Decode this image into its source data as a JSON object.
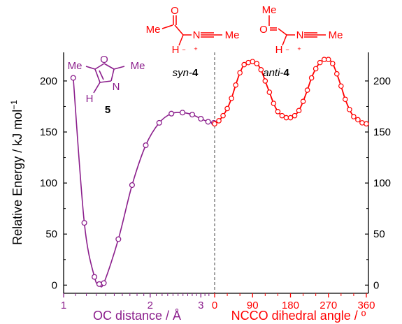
{
  "chart_data": {
    "type": "line",
    "ylabel": "Relative Energy / kJ mol",
    "ylabel_superscript": "−1",
    "ylim": [
      -8,
      228
    ],
    "yticks": [
      "0",
      "50",
      "100",
      "150",
      "200"
    ],
    "left_panel": {
      "xlabel": "OC distance / Å",
      "xlim": [
        1.0,
        3.35
      ],
      "xticks": [
        "1",
        "2",
        "3"
      ],
      "color": "#8B1E8C",
      "molecule_label": "5",
      "structure_text": {
        "me1": "Me",
        "me2": "Me",
        "o": "O",
        "n": "N",
        "h": "H"
      },
      "x": [
        1.08,
        1.18,
        1.28,
        1.33,
        1.38,
        1.55,
        1.73,
        1.93,
        2.15,
        2.37,
        2.59,
        2.8,
        3.0,
        3.18,
        3.33
      ],
      "y": [
        203,
        61,
        8,
        1,
        2,
        45,
        98,
        137,
        159,
        168,
        169,
        167,
        163,
        160,
        159
      ]
    },
    "right_panel": {
      "xlabel": "NCCO dihedral angle / º",
      "xlim": [
        0,
        365
      ],
      "xticks": [
        "0",
        "90",
        "180",
        "270",
        "360"
      ],
      "color": "#FF0000",
      "syn_label": {
        "prefix": "syn-",
        "number": "4"
      },
      "anti_label": {
        "prefix": "anti-",
        "number": "4"
      },
      "structure_text": {
        "me_top": "Me",
        "o": "O",
        "me_n": "Me",
        "n": "N",
        "h": "H",
        "minus": "−",
        "plus": "+"
      },
      "x": [
        0,
        10,
        20,
        30,
        40,
        50,
        60,
        70,
        80,
        90,
        100,
        110,
        120,
        130,
        140,
        150,
        160,
        170,
        180,
        190,
        200,
        210,
        220,
        230,
        240,
        250,
        260,
        270,
        280,
        290,
        300,
        310,
        320,
        330,
        340,
        350,
        360
      ],
      "y": [
        158,
        161,
        166,
        173,
        183,
        196,
        208,
        216,
        218,
        219,
        217,
        211,
        200,
        189,
        178,
        170,
        166,
        164,
        164,
        166,
        171,
        180,
        191,
        203,
        212,
        218,
        221,
        221,
        217,
        207,
        195,
        182,
        172,
        165,
        162,
        159,
        158
      ]
    }
  }
}
